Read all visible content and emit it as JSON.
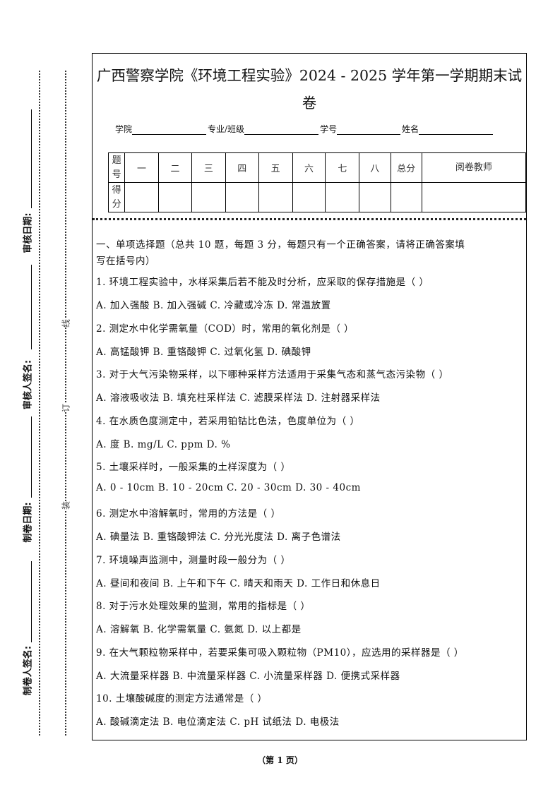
{
  "margin": {
    "labels": [
      "审核日期:",
      "审核人签名:",
      "制卷日期:",
      "制卷人签名:"
    ],
    "marks": [
      "线",
      "订",
      "装"
    ]
  },
  "header": {
    "title_line1": "广西警察学院《环境工程实验》2024 - 2025 学年第一学期期末试",
    "title_line2": "卷",
    "fields": [
      "学院",
      "专业/班级",
      "学号",
      "姓名"
    ]
  },
  "score_table": {
    "row1_label": "题号",
    "columns": [
      "一",
      "二",
      "三",
      "四",
      "五",
      "六",
      "七",
      "八",
      "总分",
      "阅卷教师"
    ],
    "row2_label": "得分"
  },
  "section1": {
    "heading_line1": "一、单项选择题（总共 10 题，每题 3 分，每题只有一个正确答案，请将正确答案填",
    "heading_line2": "写在括号内）",
    "questions": [
      {
        "q": "1. 环境工程实验中，水样采集后若不能及时分析，应采取的保存措施是（  ）",
        "options": "A. 加入强酸  B. 加入强碱  C. 冷藏或冷冻  D. 常温放置"
      },
      {
        "q": "2. 测定水中化学需氧量（COD）时，常用的氧化剂是（  ）",
        "options": "A. 高锰酸钾  B. 重铬酸钾  C. 过氧化氢  D. 碘酸钾"
      },
      {
        "q": "3. 对于大气污染物采样，以下哪种采样方法适用于采集气态和蒸气态污染物（  ）",
        "options": "A. 溶液吸收法  B. 填充柱采样法  C. 滤膜采样法  D. 注射器采样法"
      },
      {
        "q": "4. 在水质色度测定中，若采用铂钴比色法，色度单位为（  ）",
        "options": "A. 度  B. mg/L  C. ppm  D. %"
      },
      {
        "q": "5. 土壤采样时，一般采集的土样深度为（  ）",
        "options": "A. 0 - 10cm  B. 10 - 20cm  C. 20 - 30cm  D. 30 - 40cm"
      },
      {
        "q": "6. 测定水中溶解氧时，常用的方法是（  ）",
        "options": "A. 碘量法  B. 重铬酸钾法  C. 分光光度法  D. 离子色谱法"
      },
      {
        "q": "7. 环境噪声监测中，测量时段一般分为（  ）",
        "options": "A. 昼间和夜间  B. 上午和下午  C. 晴天和雨天  D. 工作日和休息日"
      },
      {
        "q": "8. 对于污水处理效果的监测，常用的指标是（  ）",
        "options": "A. 溶解氧  B. 化学需氧量  C. 氨氮  D. 以上都是"
      },
      {
        "q": "9. 在大气颗粒物采样中，若要采集可吸入颗粒物（PM10），应选用的采样器是（  ）",
        "options": "A. 大流量采样器  B. 中流量采样器  C. 小流量采样器  D. 便携式采样器"
      },
      {
        "q": "10. 土壤酸碱度的测定方法通常是（  ）",
        "options": "A. 酸碱滴定法  B. 电位滴定法  C. pH 试纸法  D. 电极法"
      }
    ]
  },
  "footer": "（第 1 页）"
}
